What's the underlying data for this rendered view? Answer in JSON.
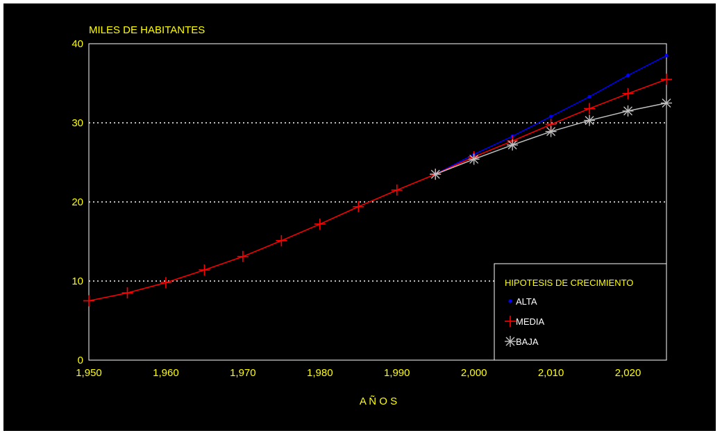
{
  "chart_data": {
    "type": "line",
    "ylabel": "MILES DE HABITANTES",
    "xlabel": "A Ñ O S",
    "xlim": [
      1950,
      2025
    ],
    "ylim": [
      0,
      40
    ],
    "x_ticks": [
      1950,
      1960,
      1970,
      1980,
      1990,
      2000,
      2010,
      2020
    ],
    "x_tick_labels": [
      "1,950",
      "1,960",
      "1,970",
      "1,980",
      "1,990",
      "2,000",
      "2,010",
      "2,020"
    ],
    "y_ticks": [
      0,
      10,
      20,
      30,
      40
    ],
    "y_tick_labels": [
      "0",
      "10",
      "20",
      "30",
      "40"
    ],
    "grid": "horizontal dotted at 10, 20, 30",
    "legend_title": "HIPOTESIS DE CRECIMIENTO",
    "legend_position": "bottom-right",
    "series": [
      {
        "name": "ALTA",
        "color": "#0000ff",
        "marker": "dot",
        "x": [
          1995,
          2000,
          2005,
          2010,
          2015,
          2020,
          2025
        ],
        "values": [
          23.5,
          26.0,
          28.3,
          30.8,
          33.3,
          36.0,
          38.5
        ]
      },
      {
        "name": "MEDIA",
        "color": "#ff0000",
        "marker": "plus",
        "x": [
          1950,
          1955,
          1960,
          1965,
          1970,
          1975,
          1980,
          1985,
          1990,
          1995,
          2000,
          2005,
          2010,
          2015,
          2020,
          2025
        ],
        "values": [
          7.5,
          8.5,
          9.8,
          11.4,
          13.1,
          15.1,
          17.2,
          19.4,
          21.5,
          23.5,
          25.7,
          27.7,
          29.8,
          31.8,
          33.7,
          35.5
        ]
      },
      {
        "name": "BAJA",
        "color": "#c0c0c0",
        "marker": "asterisk",
        "x": [
          1995,
          2000,
          2005,
          2010,
          2015,
          2020,
          2025
        ],
        "values": [
          23.5,
          25.4,
          27.2,
          28.9,
          30.3,
          31.5,
          32.5
        ]
      }
    ]
  }
}
